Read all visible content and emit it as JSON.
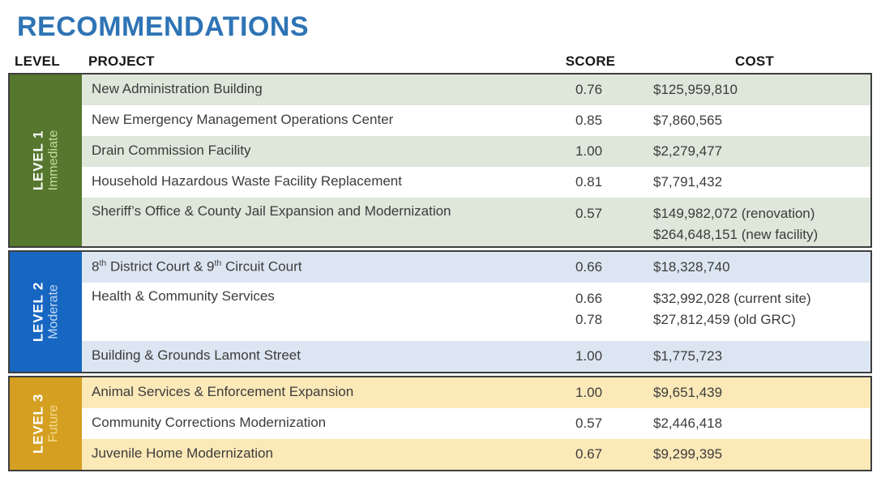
{
  "title": "RECOMMENDATIONS",
  "columns": {
    "level": "LEVEL",
    "project": "PROJECT",
    "score": "SCORE",
    "cost": "COST"
  },
  "title_color": "#2E74B5",
  "levels": [
    {
      "name": "LEVEL 1",
      "sublabel": "Immediate",
      "sidebar_color": "#55772E",
      "row_tint": "#DEE7DA",
      "sublabel_color": "#C6DCA2",
      "rows": [
        {
          "project": "New Administration Building",
          "scores": [
            "0.76"
          ],
          "costs": [
            "$125,959,810"
          ]
        },
        {
          "project": "New Emergency Management Operations Center",
          "scores": [
            "0.85"
          ],
          "costs": [
            "$7,860,565"
          ]
        },
        {
          "project": "Drain Commission Facility",
          "scores": [
            "1.00"
          ],
          "costs": [
            "$2,279,477"
          ]
        },
        {
          "project": "Household Hazardous Waste Facility Replacement",
          "scores": [
            "0.81"
          ],
          "costs": [
            "$7,791,432"
          ]
        },
        {
          "project": "Sheriff’s Office & County Jail Expansion and Modernization",
          "scores": [
            "0.57"
          ],
          "costs": [
            "$149,982,072 (renovation)",
            "$264,648,151 (new facility)"
          ]
        }
      ]
    },
    {
      "name": "LEVEL 2",
      "sublabel": "Moderate",
      "sidebar_color": "#1766C2",
      "row_tint": "#DCE6F2",
      "sublabel_color": "#BFD9F2",
      "rows": [
        {
          "project": "8^{th} District Court & 9^{th} Circuit Court",
          "scores": [
            "0.66"
          ],
          "costs": [
            "$18,328,740"
          ]
        },
        {
          "project": "Health & Community Services",
          "scores": [
            "0.66",
            "0.78"
          ],
          "costs": [
            "$32,992,028 (current site)",
            "$27,812,459 (old GRC)"
          ]
        },
        {
          "project": "Building & Grounds Lamont Street",
          "scores": [
            "1.00"
          ],
          "costs": [
            "$1,775,723"
          ]
        }
      ]
    },
    {
      "name": "LEVEL 3",
      "sublabel": "Future",
      "sidebar_color": "#D5A021",
      "row_tint": "#FCE9B8",
      "sublabel_color": "#F3DA8E",
      "rows": [
        {
          "project": "Animal Services & Enforcement Expansion",
          "scores": [
            "1.00"
          ],
          "costs": [
            "$9,651,439"
          ]
        },
        {
          "project": "Community Corrections Modernization",
          "scores": [
            "0.57"
          ],
          "costs": [
            "$2,446,418"
          ]
        },
        {
          "project": "Juvenile Home Modernization",
          "scores": [
            "0.67"
          ],
          "costs": [
            "$9,299,395"
          ]
        }
      ]
    }
  ]
}
